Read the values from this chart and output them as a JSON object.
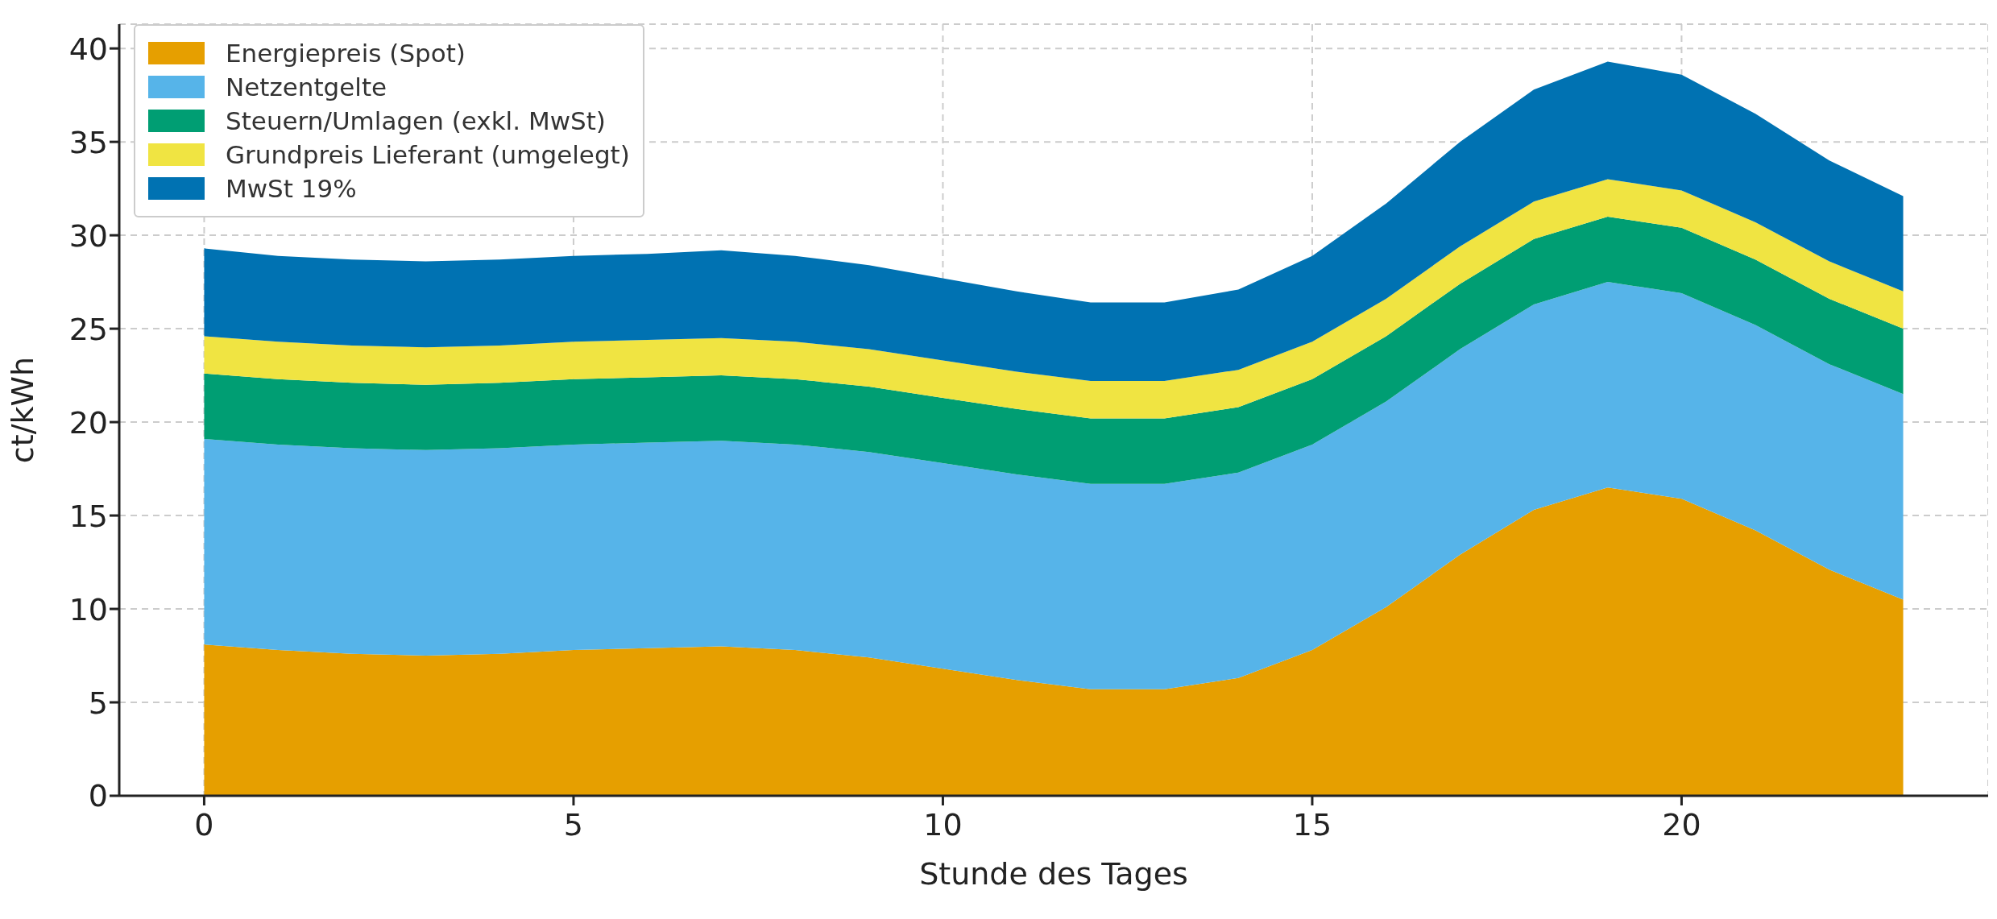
{
  "chart_data": {
    "type": "area",
    "stacked": true,
    "xlabel": "Stunde des Tages",
    "ylabel": "ct/kWh",
    "x": [
      0,
      1,
      2,
      3,
      4,
      5,
      6,
      7,
      8,
      9,
      10,
      11,
      12,
      13,
      14,
      15,
      16,
      17,
      18,
      19,
      20,
      21,
      22,
      23
    ],
    "xlim": [
      -1.15,
      24.15
    ],
    "xticks": [
      0,
      5,
      10,
      15,
      20
    ],
    "ylim": [
      0,
      41.3
    ],
    "yticks": [
      0,
      5,
      10,
      15,
      20,
      25,
      30,
      35,
      40
    ],
    "grid": true,
    "legend": "top left",
    "series": [
      {
        "name": "Energiepreis (Spot)",
        "color": "#e69f00",
        "values": [
          8.1,
          7.8,
          7.6,
          7.5,
          7.6,
          7.8,
          7.9,
          8.0,
          7.8,
          7.4,
          6.8,
          6.2,
          5.7,
          5.7,
          6.3,
          7.8,
          10.1,
          12.9,
          15.3,
          16.5,
          15.9,
          14.2,
          12.1,
          10.5
        ]
      },
      {
        "name": "Netzentgelte",
        "color": "#56b4e9",
        "values": [
          11.0,
          11.0,
          11.0,
          11.0,
          11.0,
          11.0,
          11.0,
          11.0,
          11.0,
          11.0,
          11.0,
          11.0,
          11.0,
          11.0,
          11.0,
          11.0,
          11.0,
          11.0,
          11.0,
          11.0,
          11.0,
          11.0,
          11.0,
          11.0
        ]
      },
      {
        "name": "Steuern/Umlagen (exkl. MwSt)",
        "color": "#009e73",
        "values": [
          3.5,
          3.5,
          3.5,
          3.5,
          3.5,
          3.5,
          3.5,
          3.5,
          3.5,
          3.5,
          3.5,
          3.5,
          3.5,
          3.5,
          3.5,
          3.5,
          3.5,
          3.5,
          3.5,
          3.5,
          3.5,
          3.5,
          3.5,
          3.5
        ]
      },
      {
        "name": "Grundpreis Lieferant (umgelegt)",
        "color": "#f0e442",
        "values": [
          2.0,
          2.0,
          2.0,
          2.0,
          2.0,
          2.0,
          2.0,
          2.0,
          2.0,
          2.0,
          2.0,
          2.0,
          2.0,
          2.0,
          2.0,
          2.0,
          2.0,
          2.0,
          2.0,
          2.0,
          2.0,
          2.0,
          2.0,
          2.0
        ]
      },
      {
        "name": "MwSt 19%",
        "color": "#0072b2",
        "values": [
          4.7,
          4.6,
          4.6,
          4.6,
          4.6,
          4.6,
          4.6,
          4.7,
          4.6,
          4.5,
          4.4,
          4.3,
          4.2,
          4.2,
          4.3,
          4.6,
          5.1,
          5.6,
          6.0,
          6.3,
          6.2,
          5.8,
          5.4,
          5.1
        ]
      }
    ]
  }
}
